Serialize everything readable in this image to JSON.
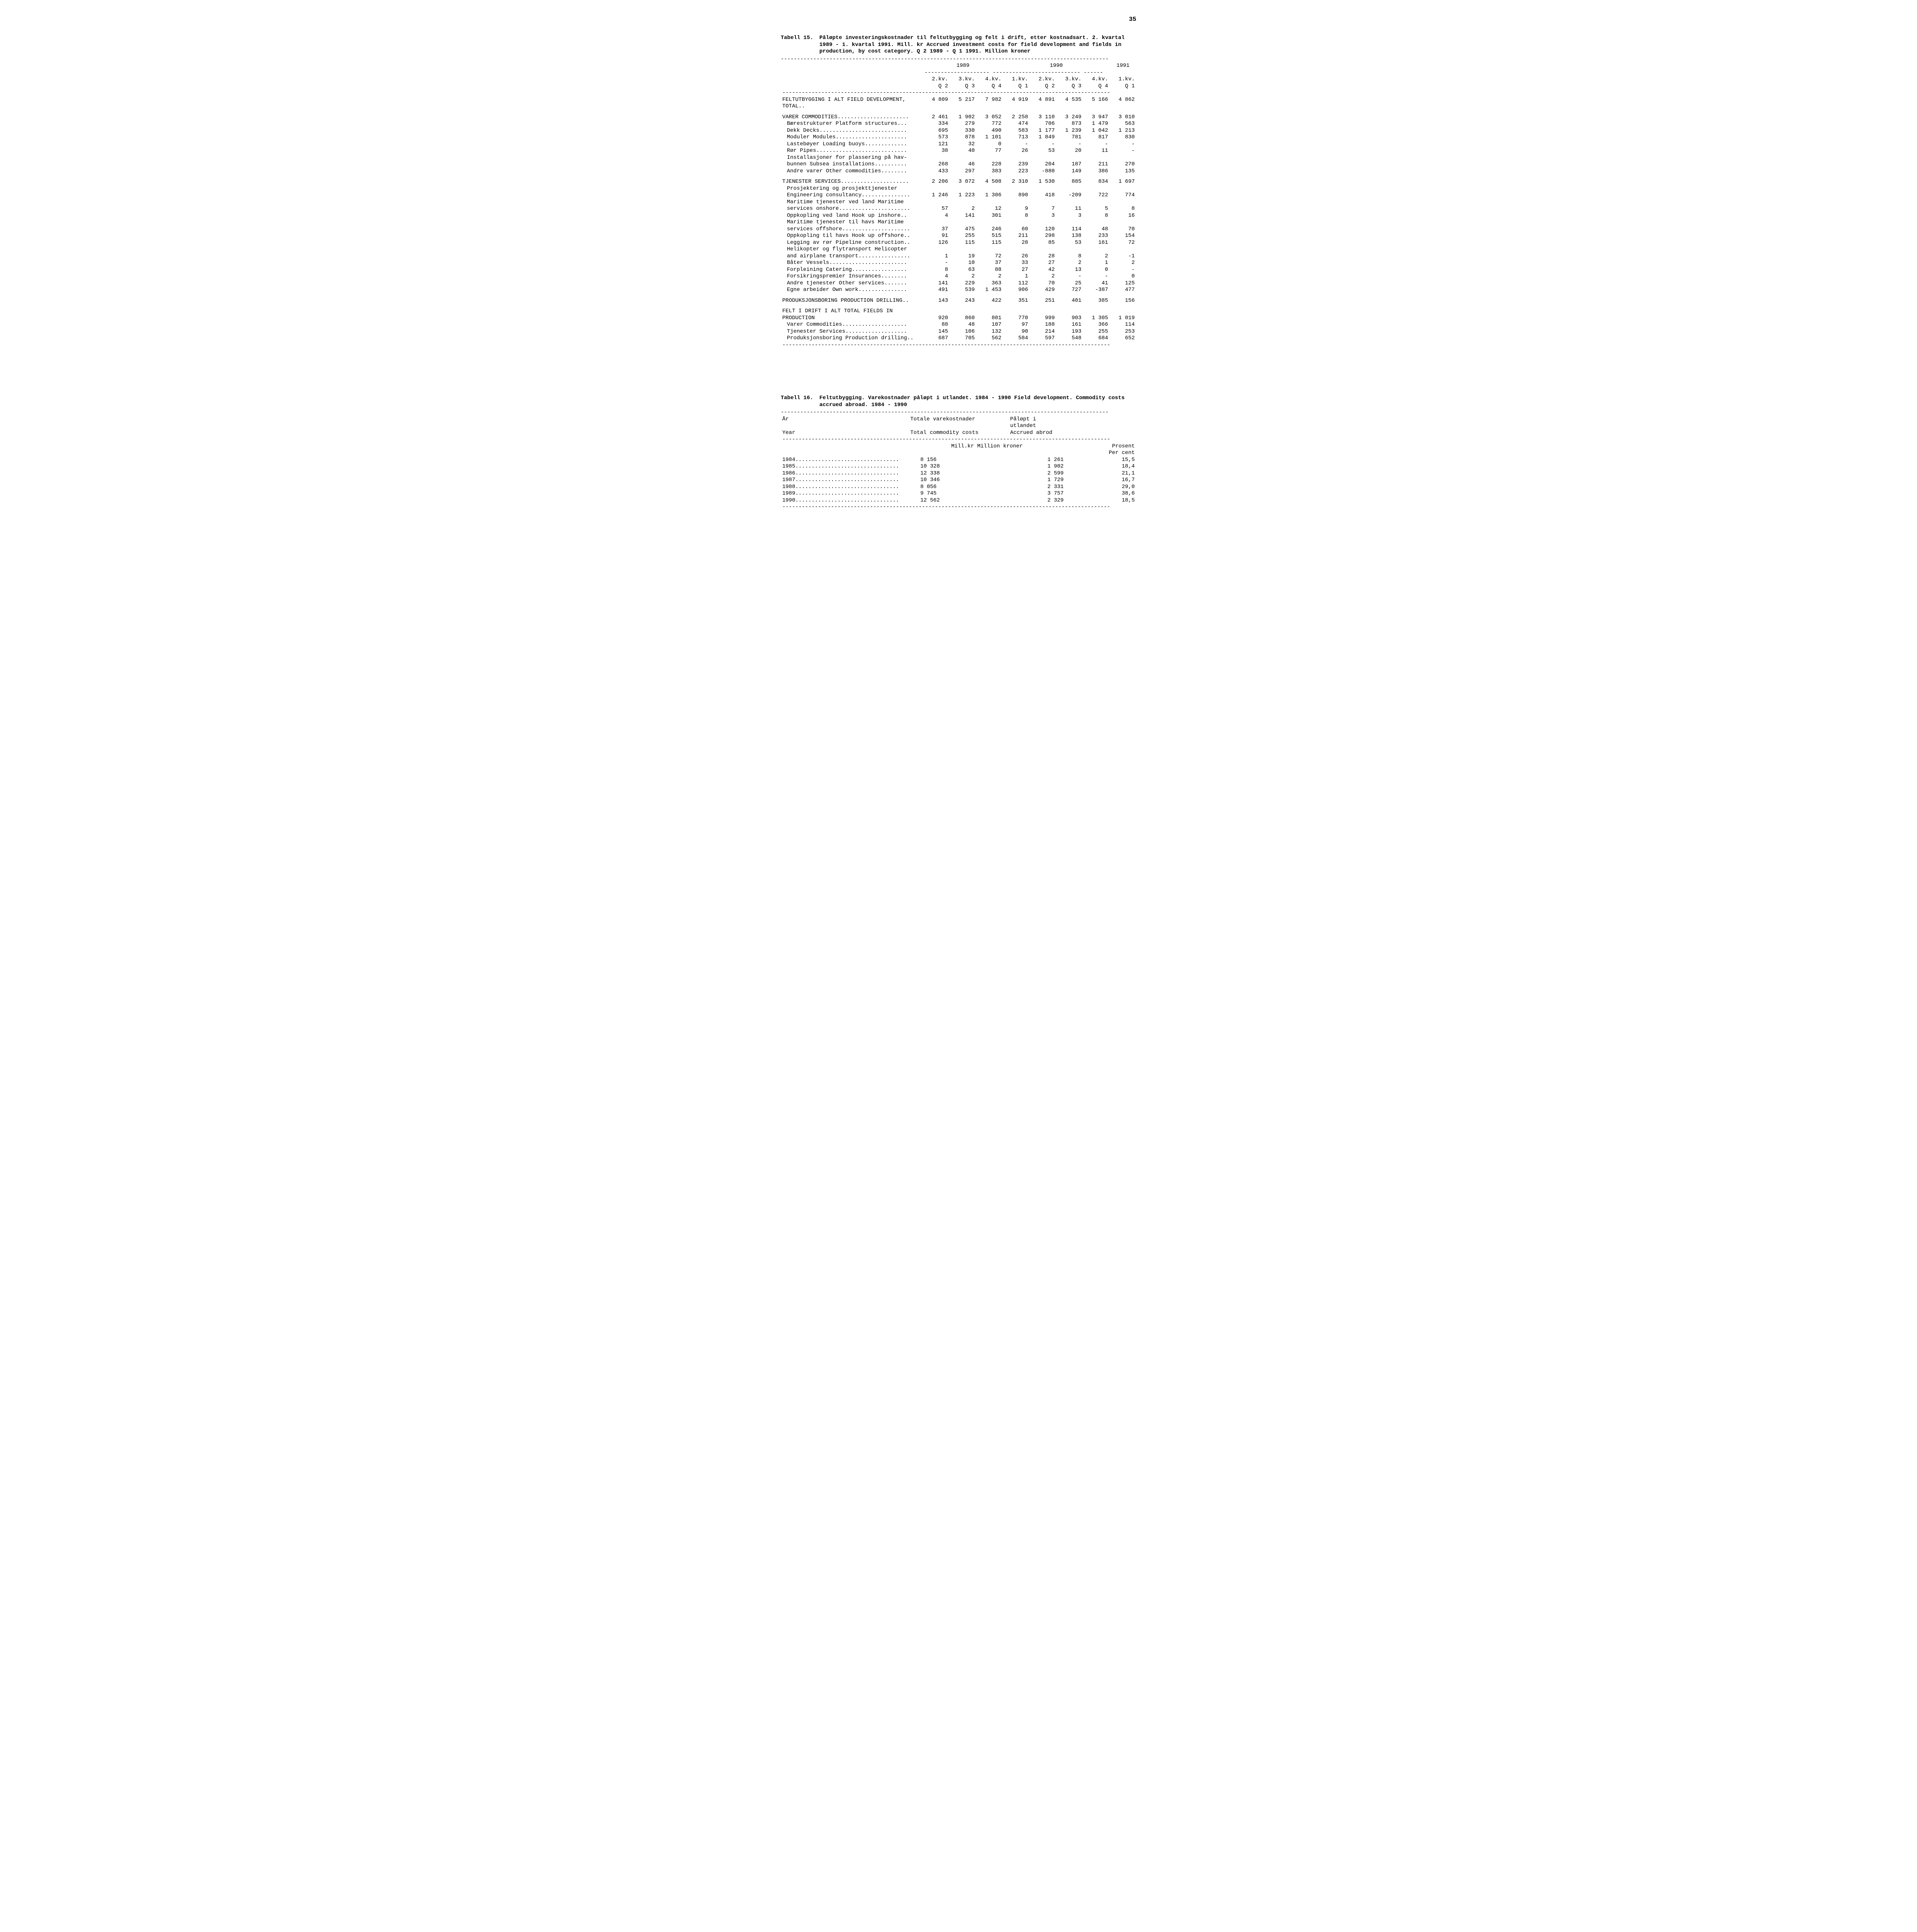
{
  "page_number": "35",
  "dash_full": "-----------------------------------------------------------------------------------------------------",
  "dash_sub_years": "-------------------- --------------------------- ------",
  "table15": {
    "label": "Tabell 15.",
    "title": "Påløpte investeringskostnader til feltutbygging og felt i drift, etter kostnadsart. 2. kvartal 1989 - 1. kvartal 1991.  Mill. kr  Accrued investment costs for field development and fields in production, by cost category.  Q 2 1989 - Q 1 1991. Million kroner",
    "year_headers": [
      "1989",
      "1990",
      "1991"
    ],
    "col_headers_top": [
      "2.kv.",
      "3.kv.",
      "4.kv.",
      "1.kv.",
      "2.kv.",
      "3.kv.",
      "4.kv.",
      "1.kv."
    ],
    "col_headers_bot": [
      "Q 2",
      "Q 3",
      "Q 4",
      "Q 1",
      "Q 2",
      "Q 3",
      "Q 4",
      "Q 1"
    ],
    "rows": [
      {
        "label": "FELTUTBYGGING I ALT  FIELD DEVELOPMENT, TOTAL",
        "dots": true,
        "vals": [
          "4 809",
          "5 217",
          "7 982",
          "4 919",
          "4 891",
          "4 535",
          "5 166",
          "4 862"
        ],
        "indent": 0,
        "gap_before": false
      },
      {
        "label": "VARER  COMMODITIES",
        "dots": true,
        "vals": [
          "2 461",
          "1 902",
          "3 052",
          "2 258",
          "3 110",
          "3 249",
          "3 947",
          "3 010"
        ],
        "indent": 0,
        "gap_before": true
      },
      {
        "label": "Bærestrukturer  Platform structures",
        "dots": true,
        "vals": [
          "334",
          "279",
          "772",
          "474",
          "706",
          "873",
          "1 479",
          "563"
        ],
        "indent": 1
      },
      {
        "label": "Dekk  Decks",
        "dots": true,
        "vals": [
          "695",
          "330",
          "490",
          "583",
          "1 177",
          "1 239",
          "1 042",
          "1 213"
        ],
        "indent": 1
      },
      {
        "label": "Moduler  Modules",
        "dots": true,
        "vals": [
          "573",
          "878",
          "1 101",
          "713",
          "1 849",
          "781",
          "817",
          "830"
        ],
        "indent": 1
      },
      {
        "label": "Lastebøyer  Loading buoys",
        "dots": true,
        "vals": [
          "121",
          "32",
          "0",
          "-",
          "-",
          "-",
          "-",
          "-"
        ],
        "indent": 1
      },
      {
        "label": "Rør  Pipes",
        "dots": true,
        "vals": [
          "38",
          "40",
          "77",
          "26",
          "53",
          "20",
          "11",
          "-"
        ],
        "indent": 1
      },
      {
        "label": "Installasjoner for plassering på hav-",
        "dots": false,
        "vals": [
          "",
          "",
          "",
          "",
          "",
          "",
          "",
          ""
        ],
        "indent": 1
      },
      {
        "label": "bunnen  Subsea installations",
        "dots": true,
        "vals": [
          "268",
          "46",
          "228",
          "239",
          "204",
          "187",
          "211",
          "270"
        ],
        "indent": 1
      },
      {
        "label": "Andre varer  Other commodities",
        "dots": true,
        "vals": [
          "433",
          "297",
          "383",
          "223",
          "-880",
          "149",
          "386",
          "135"
        ],
        "indent": 1
      },
      {
        "label": "TJENESTER  SERVICES",
        "dots": true,
        "vals": [
          "2 206",
          "3 072",
          "4 508",
          "2 310",
          "1 530",
          "885",
          "834",
          "1 697"
        ],
        "indent": 0,
        "gap_before": true
      },
      {
        "label": "Prosjektering og prosjekttjenester",
        "dots": false,
        "vals": [
          "",
          "",
          "",
          "",
          "",
          "",
          "",
          ""
        ],
        "indent": 1
      },
      {
        "label": "Engineering consultancy",
        "dots": true,
        "vals": [
          "1 246",
          "1 223",
          "1 306",
          "890",
          "418",
          "-209",
          "722",
          "774"
        ],
        "indent": 1
      },
      {
        "label": "Maritime tjenester ved land  Maritime",
        "dots": false,
        "vals": [
          "",
          "",
          "",
          "",
          "",
          "",
          "",
          ""
        ],
        "indent": 1
      },
      {
        "label": "services onshore",
        "dots": true,
        "vals": [
          "57",
          "2",
          "12",
          "9",
          "7",
          "11",
          "5",
          "8"
        ],
        "indent": 1
      },
      {
        "label": "Oppkopling ved land  Hook up inshore",
        "dots": true,
        "vals": [
          "4",
          "141",
          "301",
          "8",
          "3",
          "3",
          "8",
          "16"
        ],
        "indent": 1
      },
      {
        "label": "Maritime tjenester til havs  Maritime",
        "dots": false,
        "vals": [
          "",
          "",
          "",
          "",
          "",
          "",
          "",
          ""
        ],
        "indent": 1
      },
      {
        "label": "services offshore",
        "dots": true,
        "vals": [
          "37",
          "475",
          "246",
          "60",
          "120",
          "114",
          "48",
          "70"
        ],
        "indent": 1
      },
      {
        "label": "Oppkopling til havs  Hook up offshore",
        "dots": true,
        "vals": [
          "91",
          "255",
          "515",
          "211",
          "298",
          "138",
          "233",
          "154"
        ],
        "indent": 1
      },
      {
        "label": "Legging av rør  Pipeline construction",
        "dots": true,
        "vals": [
          "126",
          "115",
          "115",
          "28",
          "85",
          "53",
          "161",
          "72"
        ],
        "indent": 1
      },
      {
        "label": "Helikopter og flytransport  Helicopter",
        "dots": false,
        "vals": [
          "",
          "",
          "",
          "",
          "",
          "",
          "",
          ""
        ],
        "indent": 1
      },
      {
        "label": "and airplane transport",
        "dots": true,
        "vals": [
          "1",
          "19",
          "72",
          "26",
          "28",
          "8",
          "2",
          "-1"
        ],
        "indent": 1
      },
      {
        "label": "Båter  Vessels",
        "dots": true,
        "vals": [
          "-",
          "10",
          "37",
          "33",
          "27",
          "2",
          "1",
          "2"
        ],
        "indent": 1
      },
      {
        "label": "Forpleining  Catering",
        "dots": true,
        "vals": [
          "8",
          "63",
          "88",
          "27",
          "42",
          "13",
          "0",
          "-"
        ],
        "indent": 1
      },
      {
        "label": "Forsikringspremier  Insurances",
        "dots": true,
        "vals": [
          "4",
          "2",
          "2",
          "1",
          "2",
          "-",
          "-",
          "0"
        ],
        "indent": 1
      },
      {
        "label": "Andre tjenester  Other services",
        "dots": true,
        "vals": [
          "141",
          "229",
          "363",
          "112",
          "70",
          "25",
          "41",
          "125"
        ],
        "indent": 1
      },
      {
        "label": "Egne arbeider  Own work",
        "dots": true,
        "vals": [
          "491",
          "539",
          "1 453",
          "906",
          "429",
          "727",
          "-387",
          "477"
        ],
        "indent": 1
      },
      {
        "label": "PRODUKSJONSBORING  PRODUCTION DRILLING",
        "dots": true,
        "vals": [
          "143",
          "243",
          "422",
          "351",
          "251",
          "401",
          "385",
          "156"
        ],
        "indent": 0,
        "gap_before": true
      },
      {
        "label": "FELT I DRIFT I ALT  TOTAL FIELDS IN",
        "dots": false,
        "vals": [
          "",
          "",
          "",
          "",
          "",
          "",
          "",
          ""
        ],
        "indent": 0,
        "gap_before": true
      },
      {
        "label": "PRODUCTION",
        "dots": false,
        "vals": [
          "920",
          "860",
          "801",
          "770",
          "999",
          "903",
          "1 305",
          "1 019"
        ],
        "indent": 0
      },
      {
        "label": "Varer  Commodities",
        "dots": true,
        "vals": [
          "88",
          "48",
          "107",
          "97",
          "188",
          "161",
          "366",
          "114"
        ],
        "indent": 1
      },
      {
        "label": "Tjenester  Services",
        "dots": true,
        "vals": [
          "145",
          "106",
          "132",
          "90",
          "214",
          "193",
          "255",
          "253"
        ],
        "indent": 1
      },
      {
        "label": "Produksjonsboring  Production drilling",
        "dots": true,
        "vals": [
          "687",
          "705",
          "562",
          "584",
          "597",
          "548",
          "684",
          "652"
        ],
        "indent": 1
      }
    ]
  },
  "table16": {
    "label": "Tabell 16.",
    "title": "Feltutbygging.  Varekostnader påløpt i utlandet.  1984 - 1990  Field development.  Commodity costs accrued abroad.  1984 - 1990",
    "header_year_no": "År",
    "header_year_en": "Year",
    "header_total_no": "Totale varekostnader",
    "header_total_en": "Total commodity costs",
    "header_abroad_no": "Påløpt i utlandet",
    "header_abroad_en": "Accrued abrod",
    "unit_left": "Mill.kr  Million kroner",
    "header_pct_no": "Prosent",
    "header_pct_en": "Per cent",
    "rows": [
      {
        "year": "1984",
        "total": "8 156",
        "abroad": "1 261",
        "pct": "15,5"
      },
      {
        "year": "1985",
        "total": "10 328",
        "abroad": "1 902",
        "pct": "18,4"
      },
      {
        "year": "1986",
        "total": "12 338",
        "abroad": "2 599",
        "pct": "21,1"
      },
      {
        "year": "1987",
        "total": "10 346",
        "abroad": "1 729",
        "pct": "16,7"
      },
      {
        "year": "1988",
        "total": "8 056",
        "abroad": "2 331",
        "pct": "29,0"
      },
      {
        "year": "1989",
        "total": "9 745",
        "abroad": "3 757",
        "pct": "38,6"
      },
      {
        "year": "1990",
        "total": "12 562",
        "abroad": "2 329",
        "pct": "18,5"
      }
    ]
  }
}
